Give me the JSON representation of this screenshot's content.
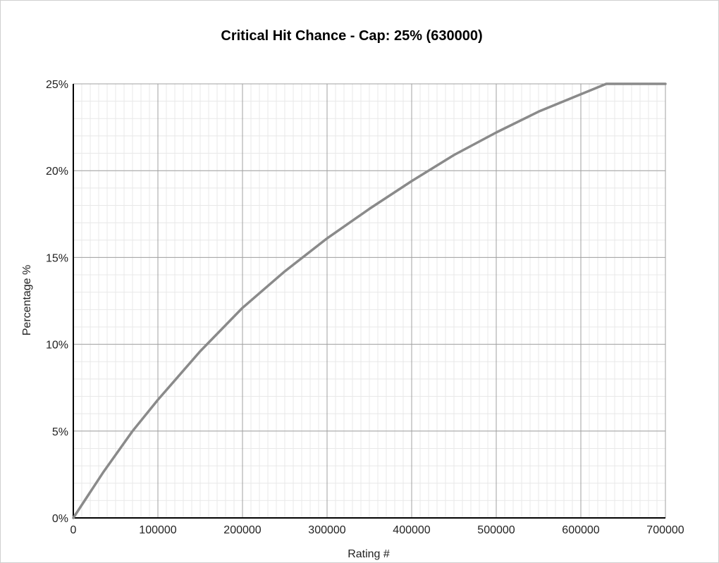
{
  "chart_data": {
    "type": "line",
    "title": "Critical Hit Chance - Cap: 25% (630000)",
    "xlabel": "Rating #",
    "ylabel": "Percentage %",
    "xlim": [
      0,
      700000
    ],
    "ylim": [
      0,
      25
    ],
    "x_ticks": [
      0,
      100000,
      200000,
      300000,
      400000,
      500000,
      600000,
      700000
    ],
    "x_tick_labels": [
      "0",
      "100000",
      "200000",
      "300000",
      "400000",
      "500000",
      "600000",
      "700000"
    ],
    "y_ticks": [
      0,
      5,
      10,
      15,
      20,
      25
    ],
    "y_tick_labels": [
      "0%",
      "5%",
      "10%",
      "15%",
      "20%",
      "25%"
    ],
    "grid": true,
    "line_color": "#8a8a8a",
    "series": [
      {
        "x": [
          0,
          35000,
          70000,
          100000,
          150000,
          200000,
          250000,
          300000,
          350000,
          400000,
          450000,
          500000,
          550000,
          600000,
          630000,
          700000
        ],
        "values": [
          0,
          2.6,
          5.0,
          6.8,
          9.6,
          12.1,
          14.2,
          16.1,
          17.8,
          19.4,
          20.9,
          22.2,
          23.4,
          24.4,
          25.0,
          25.0
        ]
      }
    ]
  }
}
